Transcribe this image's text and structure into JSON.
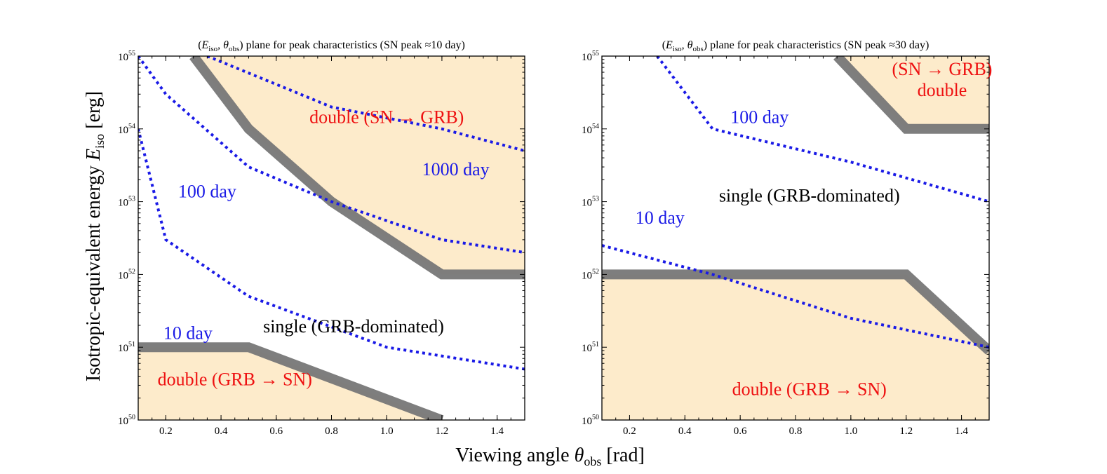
{
  "colors": {
    "region_fill": "#fdebcb",
    "boundary": "#777777",
    "dotted": "#1a1ae6",
    "red_text": "#ee1111",
    "blue_text": "#1a1ae6",
    "black_text": "#000000"
  },
  "figure": {
    "xlabel_prefix": "Viewing angle ",
    "xlabel_symbol": "θ",
    "xlabel_sub": "obs",
    "xlabel_suffix": " [rad]",
    "ylabel_prefix": "Isotropic-equivalent energy ",
    "ylabel_symbol": "E",
    "ylabel_sub": "iso",
    "ylabel_suffix": " [erg]"
  },
  "chart_data": [
    {
      "type": "line",
      "title": {
        "open": "(",
        "e": "E",
        "e_sub": "iso",
        "comma": ", ",
        "theta": "θ",
        "theta_sub": "obs",
        "rest": ") plane for peak characteristics (SN peak ≈10 day)"
      },
      "xscale": "linear",
      "yscale": "log",
      "xlim": [
        0.1,
        1.5
      ],
      "ylim": [
        1e+50,
        1e+55
      ],
      "xticks": [
        "0.2",
        "0.4",
        "0.6",
        "0.8",
        "1.0",
        "1.2",
        "1.4"
      ],
      "xtick_values": [
        0.2,
        0.4,
        0.6,
        0.8,
        1.0,
        1.2,
        1.4
      ],
      "yticks": [
        {
          "base": "10",
          "exp": "50"
        },
        {
          "base": "10",
          "exp": "51"
        },
        {
          "base": "10",
          "exp": "52"
        },
        {
          "base": "10",
          "exp": "53"
        },
        {
          "base": "10",
          "exp": "54"
        },
        {
          "base": "10",
          "exp": "55"
        }
      ],
      "ytick_exponents": [
        50,
        51,
        52,
        53,
        54,
        55
      ],
      "regions": [
        {
          "name": "region-double-sn-grb",
          "points": [
            [
              0.3,
              55
            ],
            [
              0.5,
              54
            ],
            [
              0.8,
              53
            ],
            [
              1.2,
              52
            ],
            [
              1.5,
              52
            ],
            [
              1.5,
              55
            ]
          ]
        },
        {
          "name": "region-double-grb-sn",
          "points": [
            [
              0.1,
              50
            ],
            [
              0.1,
              51
            ],
            [
              0.5,
              51
            ],
            [
              1.2,
              50
            ]
          ]
        }
      ],
      "boundaries": [
        {
          "name": "boundary-upper",
          "points": [
            [
              0.3,
              55
            ],
            [
              0.5,
              54
            ],
            [
              0.8,
              53
            ],
            [
              1.2,
              52
            ],
            [
              1.5,
              52
            ]
          ]
        },
        {
          "name": "boundary-lower",
          "points": [
            [
              0.1,
              51
            ],
            [
              0.5,
              51
            ],
            [
              1.2,
              50
            ]
          ]
        }
      ],
      "series": [
        {
          "name": "10 day",
          "x": [
            0.1,
            0.2,
            0.5,
            1.0,
            1.5
          ],
          "y": [
            1e+54,
            3e+52,
            5e+51,
            1e+51,
            5e+50
          ]
        },
        {
          "name": "100 day",
          "x": [
            0.1,
            0.2,
            0.5,
            0.8,
            1.2,
            1.5
          ],
          "y": [
            1e+55,
            3e+54,
            3e+53,
            1e+53,
            3e+52,
            2e+52
          ]
        },
        {
          "name": "1000 day",
          "x": [
            0.35,
            0.8,
            1.2,
            1.5
          ],
          "y": [
            1e+55,
            2e+54,
            1e+54,
            5e+53
          ]
        }
      ],
      "annotations": [
        {
          "name": "label-double-sn-grb",
          "lines": [
            "double (SN → GRB)"
          ],
          "x": 1.0,
          "y": 1.2e+54,
          "color": "red"
        },
        {
          "name": "label-1000-day",
          "lines": [
            "1000 day"
          ],
          "x": 1.25,
          "y": 2.3e+53,
          "color": "blue"
        },
        {
          "name": "label-100-day",
          "lines": [
            "100 day"
          ],
          "x": 0.35,
          "y": 1.15e+53,
          "color": "blue"
        },
        {
          "name": "label-single",
          "lines": [
            "single (GRB-dominated)"
          ],
          "x": 0.88,
          "y": 1.6e+51,
          "color": "black"
        },
        {
          "name": "label-10-day",
          "lines": [
            "10 day"
          ],
          "x": 0.28,
          "y": 1.3e+51,
          "color": "blue"
        },
        {
          "name": "label-double-grb-sn",
          "lines": [
            "double (GRB → SN)"
          ],
          "x": 0.45,
          "y": 3e+50,
          "color": "red"
        }
      ]
    },
    {
      "type": "line",
      "title": {
        "open": "(",
        "e": "E",
        "e_sub": "iso",
        "comma": ", ",
        "theta": "θ",
        "theta_sub": "obs",
        "rest": ") plane for peak characteristics (SN peak ≈30 day)"
      },
      "xscale": "linear",
      "yscale": "log",
      "xlim": [
        0.1,
        1.5
      ],
      "ylim": [
        1e+50,
        1e+55
      ],
      "xticks": [
        "0.2",
        "0.4",
        "0.6",
        "0.8",
        "1.0",
        "1.2",
        "1.4"
      ],
      "xtick_values": [
        0.2,
        0.4,
        0.6,
        0.8,
        1.0,
        1.2,
        1.4
      ],
      "yticks": [
        {
          "base": "10",
          "exp": "50"
        },
        {
          "base": "10",
          "exp": "51"
        },
        {
          "base": "10",
          "exp": "52"
        },
        {
          "base": "10",
          "exp": "53"
        },
        {
          "base": "10",
          "exp": "54"
        },
        {
          "base": "10",
          "exp": "55"
        }
      ],
      "ytick_exponents": [
        50,
        51,
        52,
        53,
        54,
        55
      ],
      "regions": [
        {
          "name": "region-double-sn-grb",
          "points": [
            [
              0.95,
              55
            ],
            [
              1.2,
              54
            ],
            [
              1.5,
              54
            ],
            [
              1.5,
              55
            ]
          ]
        },
        {
          "name": "region-double-grb-sn",
          "points": [
            [
              0.1,
              50
            ],
            [
              0.1,
              52
            ],
            [
              1.2,
              52
            ],
            [
              1.5,
              50.95
            ],
            [
              1.5,
              50
            ]
          ]
        }
      ],
      "boundaries": [
        {
          "name": "boundary-upper",
          "points": [
            [
              0.95,
              55
            ],
            [
              1.2,
              54
            ],
            [
              1.5,
              54
            ]
          ]
        },
        {
          "name": "boundary-lower",
          "points": [
            [
              0.1,
              52
            ],
            [
              1.2,
              52
            ],
            [
              1.5,
              50.95
            ]
          ]
        }
      ],
      "series": [
        {
          "name": "10 day",
          "x": [
            0.1,
            0.5,
            1.0,
            1.5
          ],
          "y": [
            2.5e+52,
            1e+52,
            2.5e+51,
            1e+51
          ]
        },
        {
          "name": "100 day",
          "x": [
            0.3,
            0.5,
            1.0,
            1.5
          ],
          "y": [
            1e+55,
            1e+54,
            3.5e+53,
            1e+53
          ]
        }
      ],
      "annotations": [
        {
          "name": "label-double-sn-grb",
          "lines": [
            "(SN → GRB)",
            "double"
          ],
          "x": 1.33,
          "y": 5.5e+54,
          "color": "red"
        },
        {
          "name": "label-100-day",
          "lines": [
            "100 day"
          ],
          "x": 0.67,
          "y": 1.2e+54,
          "color": "blue"
        },
        {
          "name": "label-single",
          "lines": [
            "single (GRB-dominated)"
          ],
          "x": 0.85,
          "y": 1e+53,
          "color": "black"
        },
        {
          "name": "label-10-day",
          "lines": [
            "10 day"
          ],
          "x": 0.31,
          "y": 5e+52,
          "color": "blue"
        },
        {
          "name": "label-double-grb-sn",
          "lines": [
            "double (GRB → SN)"
          ],
          "x": 0.85,
          "y": 2.2e+50,
          "color": "red"
        }
      ]
    }
  ]
}
